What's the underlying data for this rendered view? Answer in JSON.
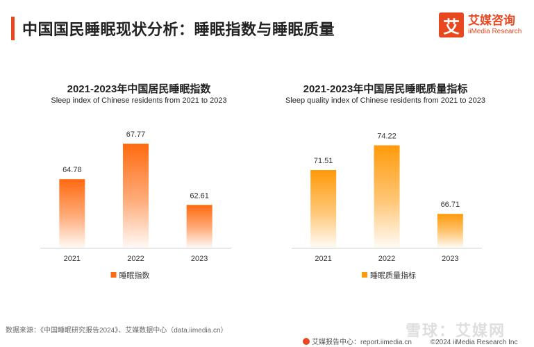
{
  "header": {
    "title": "中国国民睡眠现状分析：睡眠指数与睡眠质量",
    "logo_mark": "艾",
    "logo_cn": "艾媒咨询",
    "logo_en": "iiMedia Research"
  },
  "chart_data": [
    {
      "type": "bar",
      "title": "2021-2023年中国居民睡眠指数",
      "subtitle": "Sleep index of Chinese residents from 2021 to 2023",
      "categories": [
        "2021",
        "2022",
        "2023"
      ],
      "series": [
        {
          "name": "睡眠指数",
          "values": [
            64.78,
            67.77,
            62.61
          ],
          "color": "#ff6a10"
        }
      ],
      "value_labels": [
        "64.78",
        "67.77",
        "62.61"
      ],
      "ylim": [
        59,
        69
      ],
      "legend": "bottom-center"
    },
    {
      "type": "bar",
      "title": "2021-2023年中国居民睡眠质量指标",
      "subtitle": "Sleep quality index of Chinese residents from 2021 to 2023",
      "categories": [
        "2021",
        "2022",
        "2023"
      ],
      "series": [
        {
          "name": "睡眠质量指标",
          "values": [
            71.51,
            74.22,
            66.71
          ],
          "color": "#ff9a0a"
        }
      ],
      "value_labels": [
        "71.51",
        "74.22",
        "66.71"
      ],
      "ylim": [
        63,
        76
      ],
      "legend": "bottom-center"
    }
  ],
  "footer": {
    "source": "数据来源：《中国睡眠研究报告2024》、艾媒数据中心（data.iimedia.cn）",
    "watermark": "雪球：艾媒网",
    "report_center": "艾媒报告中心：report.iimedia.cn",
    "copyright": "©2024  iiMedia Research Inc"
  }
}
